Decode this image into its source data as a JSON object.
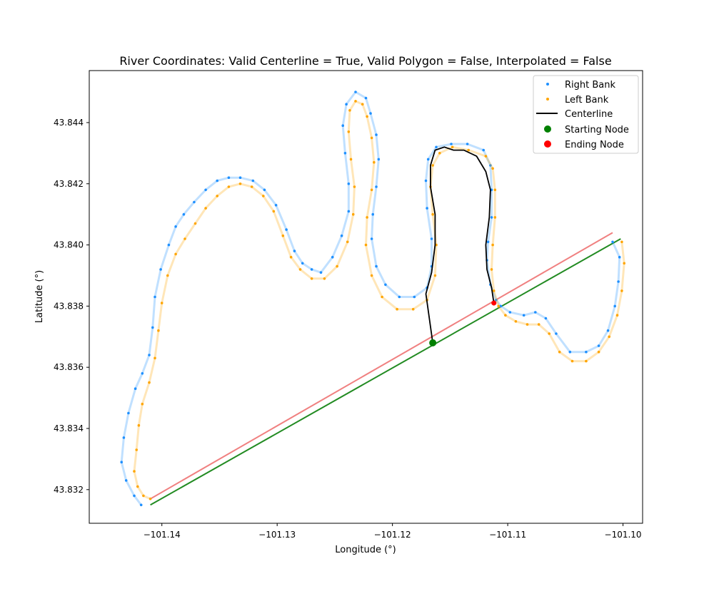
{
  "chart_data": {
    "type": "scatter",
    "title": "River Coordinates: Valid Centerline = True, Valid Polygon = False, Interpolated = False",
    "xlabel": "Longitude (°)",
    "ylabel": "Latitude (°)",
    "xlim": [
      -101.1463,
      -101.0983
    ],
    "ylim": [
      43.8309,
      43.8457
    ],
    "x_ticks": [
      -101.14,
      -101.13,
      -101.12,
      -101.11,
      -101.1
    ],
    "x_tick_labels": [
      "−101.14",
      "−101.13",
      "−101.12",
      "−101.11",
      "−101.10"
    ],
    "y_ticks": [
      43.832,
      43.834,
      43.836,
      43.838,
      43.84,
      43.842,
      43.844
    ],
    "y_tick_labels": [
      "43.832",
      "43.834",
      "43.836",
      "43.838",
      "43.840",
      "43.842",
      "43.844"
    ],
    "grid": false,
    "legend_position": "top-right",
    "legend": [
      {
        "label": "Right Bank",
        "marker": "dot",
        "color": "#1e90ff"
      },
      {
        "label": "Left Bank",
        "marker": "dot",
        "color": "#ffa500"
      },
      {
        "label": "Centerline",
        "marker": "line",
        "color": "#000000"
      },
      {
        "label": "Starting Node",
        "marker": "circle",
        "color": "#008000"
      },
      {
        "label": "Ending Node",
        "marker": "circle",
        "color": "#ff0000"
      }
    ],
    "series": [
      {
        "name": "Right Bank",
        "color": "#1e90ff",
        "points": [
          [
            -101.1009,
            43.8401
          ],
          [
            -101.1003,
            43.8396
          ],
          [
            -101.1004,
            43.8388
          ],
          [
            -101.1007,
            43.838
          ],
          [
            -101.1013,
            43.8372
          ],
          [
            -101.1021,
            43.8367
          ],
          [
            -101.1032,
            43.8365
          ],
          [
            -101.1046,
            43.8365
          ],
          [
            -101.1058,
            43.8371
          ],
          [
            -101.1067,
            43.8376
          ],
          [
            -101.1076,
            43.8378
          ],
          [
            -101.1086,
            43.8377
          ],
          [
            -101.1098,
            43.8378
          ],
          [
            -101.1106,
            43.838
          ],
          [
            -101.111,
            43.8382
          ],
          [
            -101.1115,
            43.8387
          ],
          [
            -101.1118,
            43.8395
          ],
          [
            -101.1117,
            43.8401
          ],
          [
            -101.1114,
            43.8409
          ],
          [
            -101.1114,
            43.8418
          ],
          [
            -101.1115,
            43.8426
          ],
          [
            -101.1121,
            43.8431
          ],
          [
            -101.1135,
            43.8433
          ],
          [
            -101.1149,
            43.8433
          ],
          [
            -101.1162,
            43.8432
          ],
          [
            -101.1169,
            43.8428
          ],
          [
            -101.1171,
            43.8421
          ],
          [
            -101.117,
            43.8412
          ],
          [
            -101.1166,
            43.8402
          ],
          [
            -101.1166,
            43.8393
          ],
          [
            -101.117,
            43.8386
          ],
          [
            -101.1181,
            43.8383
          ],
          [
            -101.1194,
            43.8383
          ],
          [
            -101.1206,
            43.8387
          ],
          [
            -101.1214,
            43.8393
          ],
          [
            -101.1218,
            43.8402
          ],
          [
            -101.1217,
            43.841
          ],
          [
            -101.1214,
            43.8419
          ],
          [
            -101.1212,
            43.8428
          ],
          [
            -101.1214,
            43.8436
          ],
          [
            -101.1219,
            43.8443
          ],
          [
            -101.1223,
            43.8448
          ],
          [
            -101.1232,
            43.845
          ],
          [
            -101.124,
            43.8446
          ],
          [
            -101.1243,
            43.8439
          ],
          [
            -101.1241,
            43.843
          ],
          [
            -101.1238,
            43.842
          ],
          [
            -101.1238,
            43.8411
          ],
          [
            -101.1244,
            43.8403
          ],
          [
            -101.1252,
            43.8396
          ],
          [
            -101.1262,
            43.8391
          ],
          [
            -101.127,
            43.8392
          ],
          [
            -101.1278,
            43.8394
          ],
          [
            -101.1285,
            43.8398
          ],
          [
            -101.1292,
            43.8405
          ],
          [
            -101.1301,
            43.8413
          ],
          [
            -101.1311,
            43.8418
          ],
          [
            -101.1321,
            43.8421
          ],
          [
            -101.1332,
            43.8422
          ],
          [
            -101.1342,
            43.8422
          ],
          [
            -101.1352,
            43.8421
          ],
          [
            -101.1362,
            43.8418
          ],
          [
            -101.1372,
            43.8414
          ],
          [
            -101.1381,
            43.841
          ],
          [
            -101.1388,
            43.8406
          ],
          [
            -101.1394,
            43.84
          ],
          [
            -101.1401,
            43.8392
          ],
          [
            -101.1406,
            43.8383
          ],
          [
            -101.1408,
            43.8373
          ],
          [
            -101.1411,
            43.8364
          ],
          [
            -101.1417,
            43.8358
          ],
          [
            -101.1423,
            43.8353
          ],
          [
            -101.1429,
            43.8345
          ],
          [
            -101.1433,
            43.8337
          ],
          [
            -101.1435,
            43.8329
          ],
          [
            -101.1431,
            43.8323
          ],
          [
            -101.1424,
            43.8318
          ],
          [
            -101.1418,
            43.8315
          ]
        ]
      },
      {
        "name": "Left Bank",
        "color": "#ffa500",
        "points": [
          [
            -101.1001,
            43.8401
          ],
          [
            -101.0999,
            43.8394
          ],
          [
            -101.1001,
            43.8385
          ],
          [
            -101.1005,
            43.8377
          ],
          [
            -101.1012,
            43.837
          ],
          [
            -101.1021,
            43.8365
          ],
          [
            -101.1032,
            43.8362
          ],
          [
            -101.1044,
            43.8362
          ],
          [
            -101.1055,
            43.8365
          ],
          [
            -101.1064,
            43.8371
          ],
          [
            -101.1073,
            43.8374
          ],
          [
            -101.1083,
            43.8374
          ],
          [
            -101.1093,
            43.8375
          ],
          [
            -101.1102,
            43.8377
          ],
          [
            -101.1108,
            43.838
          ],
          [
            -101.1112,
            43.8385
          ],
          [
            -101.1114,
            43.8392
          ],
          [
            -101.1113,
            43.84
          ],
          [
            -101.1111,
            43.8409
          ],
          [
            -101.1111,
            43.8418
          ],
          [
            -101.1113,
            43.8425
          ],
          [
            -101.1119,
            43.8429
          ],
          [
            -101.1134,
            43.8431
          ],
          [
            -101.1148,
            43.8432
          ],
          [
            -101.1159,
            43.843
          ],
          [
            -101.1165,
            43.8426
          ],
          [
            -101.1167,
            43.8419
          ],
          [
            -101.1165,
            43.841
          ],
          [
            -101.1162,
            43.84
          ],
          [
            -101.1163,
            43.839
          ],
          [
            -101.117,
            43.8382
          ],
          [
            -101.1182,
            43.8379
          ],
          [
            -101.1196,
            43.8379
          ],
          [
            -101.1209,
            43.8383
          ],
          [
            -101.1218,
            43.839
          ],
          [
            -101.1223,
            43.84
          ],
          [
            -101.1222,
            43.8409
          ],
          [
            -101.1218,
            43.8418
          ],
          [
            -101.1216,
            43.8427
          ],
          [
            -101.1218,
            43.8435
          ],
          [
            -101.1222,
            43.8442
          ],
          [
            -101.1226,
            43.8446
          ],
          [
            -101.1232,
            43.8447
          ],
          [
            -101.1237,
            43.8444
          ],
          [
            -101.1238,
            43.8437
          ],
          [
            -101.1236,
            43.8428
          ],
          [
            -101.1233,
            43.8419
          ],
          [
            -101.1234,
            43.841
          ],
          [
            -101.1239,
            43.8401
          ],
          [
            -101.1248,
            43.8393
          ],
          [
            -101.1259,
            43.8389
          ],
          [
            -101.127,
            43.8389
          ],
          [
            -101.128,
            43.8392
          ],
          [
            -101.1288,
            43.8396
          ],
          [
            -101.1295,
            43.8403
          ],
          [
            -101.1303,
            43.8411
          ],
          [
            -101.1312,
            43.8416
          ],
          [
            -101.1322,
            43.8419
          ],
          [
            -101.1332,
            43.842
          ],
          [
            -101.1342,
            43.8419
          ],
          [
            -101.1352,
            43.8416
          ],
          [
            -101.1362,
            43.8412
          ],
          [
            -101.1371,
            43.8407
          ],
          [
            -101.138,
            43.8402
          ],
          [
            -101.1388,
            43.8397
          ],
          [
            -101.1395,
            43.839
          ],
          [
            -101.14,
            43.8381
          ],
          [
            -101.1403,
            43.8372
          ],
          [
            -101.1406,
            43.8363
          ],
          [
            -101.1411,
            43.8355
          ],
          [
            -101.1417,
            43.8348
          ],
          [
            -101.142,
            43.8341
          ],
          [
            -101.1422,
            43.8333
          ],
          [
            -101.1424,
            43.8326
          ],
          [
            -101.1421,
            43.8321
          ],
          [
            -101.1416,
            43.8318
          ],
          [
            -101.141,
            43.8317
          ]
        ]
      },
      {
        "name": "Centerline",
        "color": "#000000",
        "points": [
          [
            -101.1165,
            43.8368
          ],
          [
            -101.1171,
            43.8384
          ],
          [
            -101.1166,
            43.8391
          ],
          [
            -101.1163,
            43.84
          ],
          [
            -101.1163,
            43.841
          ],
          [
            -101.1167,
            43.8419
          ],
          [
            -101.1167,
            43.8426
          ],
          [
            -101.1163,
            43.8431
          ],
          [
            -101.1155,
            43.8432
          ],
          [
            -101.1147,
            43.8431
          ],
          [
            -101.1138,
            43.8431
          ],
          [
            -101.1127,
            43.8429
          ],
          [
            -101.1119,
            43.8424
          ],
          [
            -101.1115,
            43.8418
          ],
          [
            -101.1116,
            43.8409
          ],
          [
            -101.1119,
            43.84
          ],
          [
            -101.1118,
            43.8392
          ],
          [
            -101.1114,
            43.8386
          ],
          [
            -101.1112,
            43.8381
          ]
        ]
      }
    ],
    "connector_lines": [
      {
        "color": "#f08080",
        "points": [
          [
            -101.141,
            43.8317
          ],
          [
            -101.1009,
            43.8404
          ]
        ]
      },
      {
        "color": "#228b22",
        "points": [
          [
            -101.141,
            43.8315
          ],
          [
            -101.1002,
            43.8402
          ]
        ]
      }
    ],
    "nodes": {
      "start": {
        "color": "#008000",
        "point": [
          -101.1165,
          43.8368
        ]
      },
      "end": {
        "color": "#ff0000",
        "point": [
          -101.1112,
          43.8381
        ]
      }
    }
  }
}
